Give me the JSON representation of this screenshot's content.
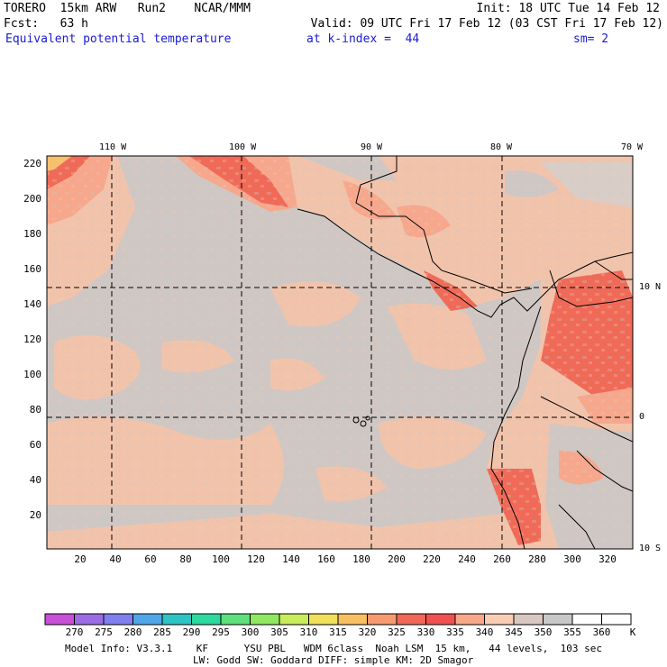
{
  "header": {
    "line1_left": "TORERO  15km ARW   Run2    NCAR/MMM",
    "line1_right": "Init: 18 UTC Tue 14 Feb 12",
    "line2_left": "Fcst:   63 h",
    "line2_right": "Valid: 09 UTC Fri 17 Feb 12 (03 CST Fri 17 Feb 12)",
    "field_name": "Equivalent potential temperature",
    "level": "at k-index =  44",
    "smoothing": "sm= 2"
  },
  "map": {
    "top_lon_labels": [
      "110 W",
      "100 W",
      "90 W",
      "80 W",
      "70 W"
    ],
    "right_lat_labels": [
      "10 N",
      "0",
      "10 S"
    ],
    "y_grid_ticks": [
      "220",
      "200",
      "180",
      "160",
      "140",
      "120",
      "100",
      "80",
      "60",
      "40",
      "20"
    ],
    "x_grid_ticks": [
      "20",
      "40",
      "60",
      "80",
      "100",
      "120",
      "140",
      "160",
      "180",
      "200",
      "220",
      "240",
      "260",
      "280",
      "300",
      "320"
    ]
  },
  "colorbar": {
    "unit": "K",
    "labels": [
      "270",
      "275",
      "280",
      "285",
      "290",
      "295",
      "300",
      "305",
      "310",
      "315",
      "320",
      "325",
      "330",
      "335",
      "340",
      "345",
      "350",
      "355",
      "360"
    ],
    "colors": [
      "#c84fd8",
      "#9b6ce6",
      "#7f7ff0",
      "#4fa6e8",
      "#2ec4c4",
      "#2ed89f",
      "#5ee07a",
      "#8fe860",
      "#c8ec5a",
      "#f0e05a",
      "#f8c060",
      "#f89a70",
      "#f06858",
      "#f05050",
      "#f8a888",
      "#f8cdb4",
      "#d8c8c0",
      "#c8c8c8",
      "#ffffff"
    ]
  },
  "footer": {
    "line1": "Model Info: V3.3.1    KF      YSU PBL   WDM 6class  Noah LSM  15 km,   44 levels,  103 sec",
    "line2": "LW: Godd SW: Goddard DIFF: simple KM: 2D Smagor"
  }
}
